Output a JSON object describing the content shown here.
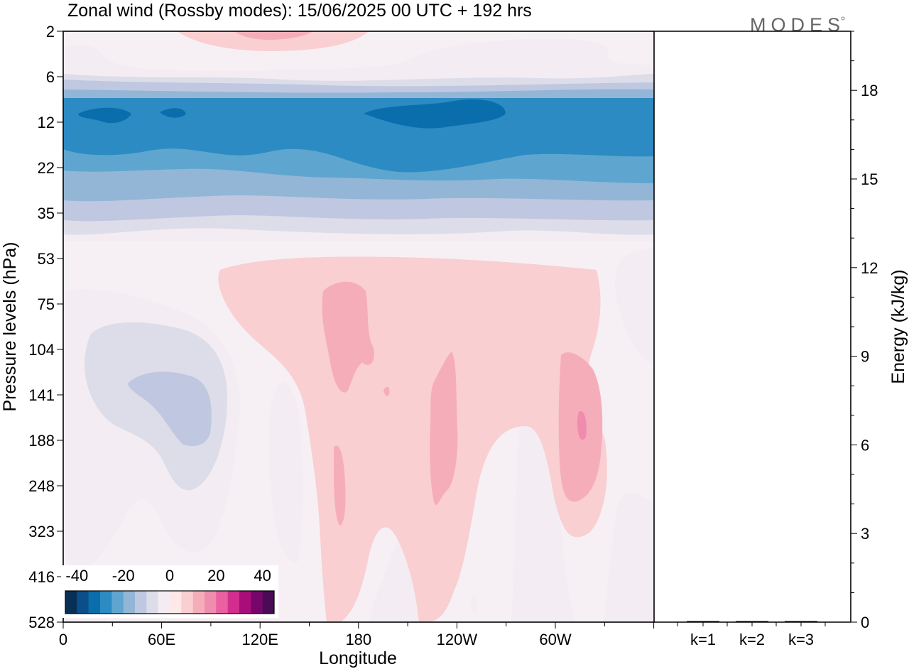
{
  "header": {
    "title": "Zonal wind (Rossby modes):  15/06/2025  00 UTC  + 192 hrs",
    "logo": "MODES"
  },
  "colors": {
    "scale": [
      "#0a2f56",
      "#0a4f8a",
      "#0a6ead",
      "#2d8bc3",
      "#5ea6cf",
      "#93b6d6",
      "#bfc8e0",
      "#dddde9",
      "#f3edf3",
      "#fde7e8",
      "#f9cfd1",
      "#f5aeb9",
      "#f08cae",
      "#ea60a0",
      "#d32e8e",
      "#a90d79",
      "#78066a",
      "#4a0a55"
    ],
    "zero_band": "#f6f0f5"
  },
  "chart_data": [
    {
      "type": "heatmap",
      "title": "Zonal wind (Rossby modes):  15/06/2025  00 UTC  + 192 hrs",
      "xlabel": "Longitude",
      "ylabel": "Pressure levels (hPa)",
      "x_ticks": [
        "0",
        "60E",
        "120E",
        "180",
        "120W",
        "60W"
      ],
      "y_ticks": [
        "2",
        "6",
        "12",
        "22",
        "35",
        "53",
        "75",
        "104",
        "141",
        "188",
        "248",
        "323",
        "416",
        "528"
      ],
      "colorbar": {
        "tick_labels": [
          "-40",
          "-20",
          "0",
          "20",
          "40"
        ],
        "levels": [
          -45,
          -40,
          -35,
          -30,
          -25,
          -20,
          -15,
          -10,
          -5,
          0,
          5,
          10,
          15,
          20,
          25,
          30,
          35,
          40,
          45
        ]
      },
      "regions": [
        {
          "name": "easterly-jet-core",
          "level_range_hPa": [
            10,
            16
          ],
          "longitude_range": [
            0,
            360
          ],
          "value": -35
        },
        {
          "name": "easterly-band",
          "level_range_hPa": [
            8,
            22
          ],
          "longitude_range": [
            0,
            360
          ],
          "value": -30
        },
        {
          "name": "easterly-outer",
          "level_range_hPa": [
            6,
            35
          ],
          "longitude_range": [
            0,
            360
          ],
          "value": -20
        },
        {
          "name": "upper-westerly",
          "level_range_hPa": [
            2,
            3
          ],
          "longitude_range": [
            60,
            170
          ],
          "value": 5
        },
        {
          "name": "tropical-easterly-core",
          "level_range_hPa": [
            115,
            200
          ],
          "longitude_range": [
            45,
            90
          ],
          "value": -15
        },
        {
          "name": "westerly-center-pacific",
          "level_range_hPa": [
            55,
            150
          ],
          "longitude_range": [
            175,
            200
          ],
          "value": 8
        },
        {
          "name": "westerly-eastern-pacific",
          "level_range_hPa": [
            120,
            300
          ],
          "longitude_range": [
            235,
            255
          ],
          "value": 8
        },
        {
          "name": "westerly-atlantic",
          "level_range_hPa": [
            120,
            310
          ],
          "longitude_range": [
            300,
            330
          ],
          "value": 10
        },
        {
          "name": "westerly-atlantic-core",
          "level_range_hPa": [
            165,
            200
          ],
          "longitude_range": [
            315,
            325
          ],
          "value": 15
        }
      ]
    },
    {
      "type": "bar",
      "categories": [
        "k=1",
        "k=2",
        "k=3"
      ],
      "values": [
        0.02,
        0.01,
        0.01
      ],
      "ylabel": "Energy (kJ/kg)",
      "y_ticks": [
        "0",
        "3",
        "6",
        "9",
        "12",
        "15",
        "18"
      ],
      "ylim": [
        0,
        20
      ]
    }
  ]
}
